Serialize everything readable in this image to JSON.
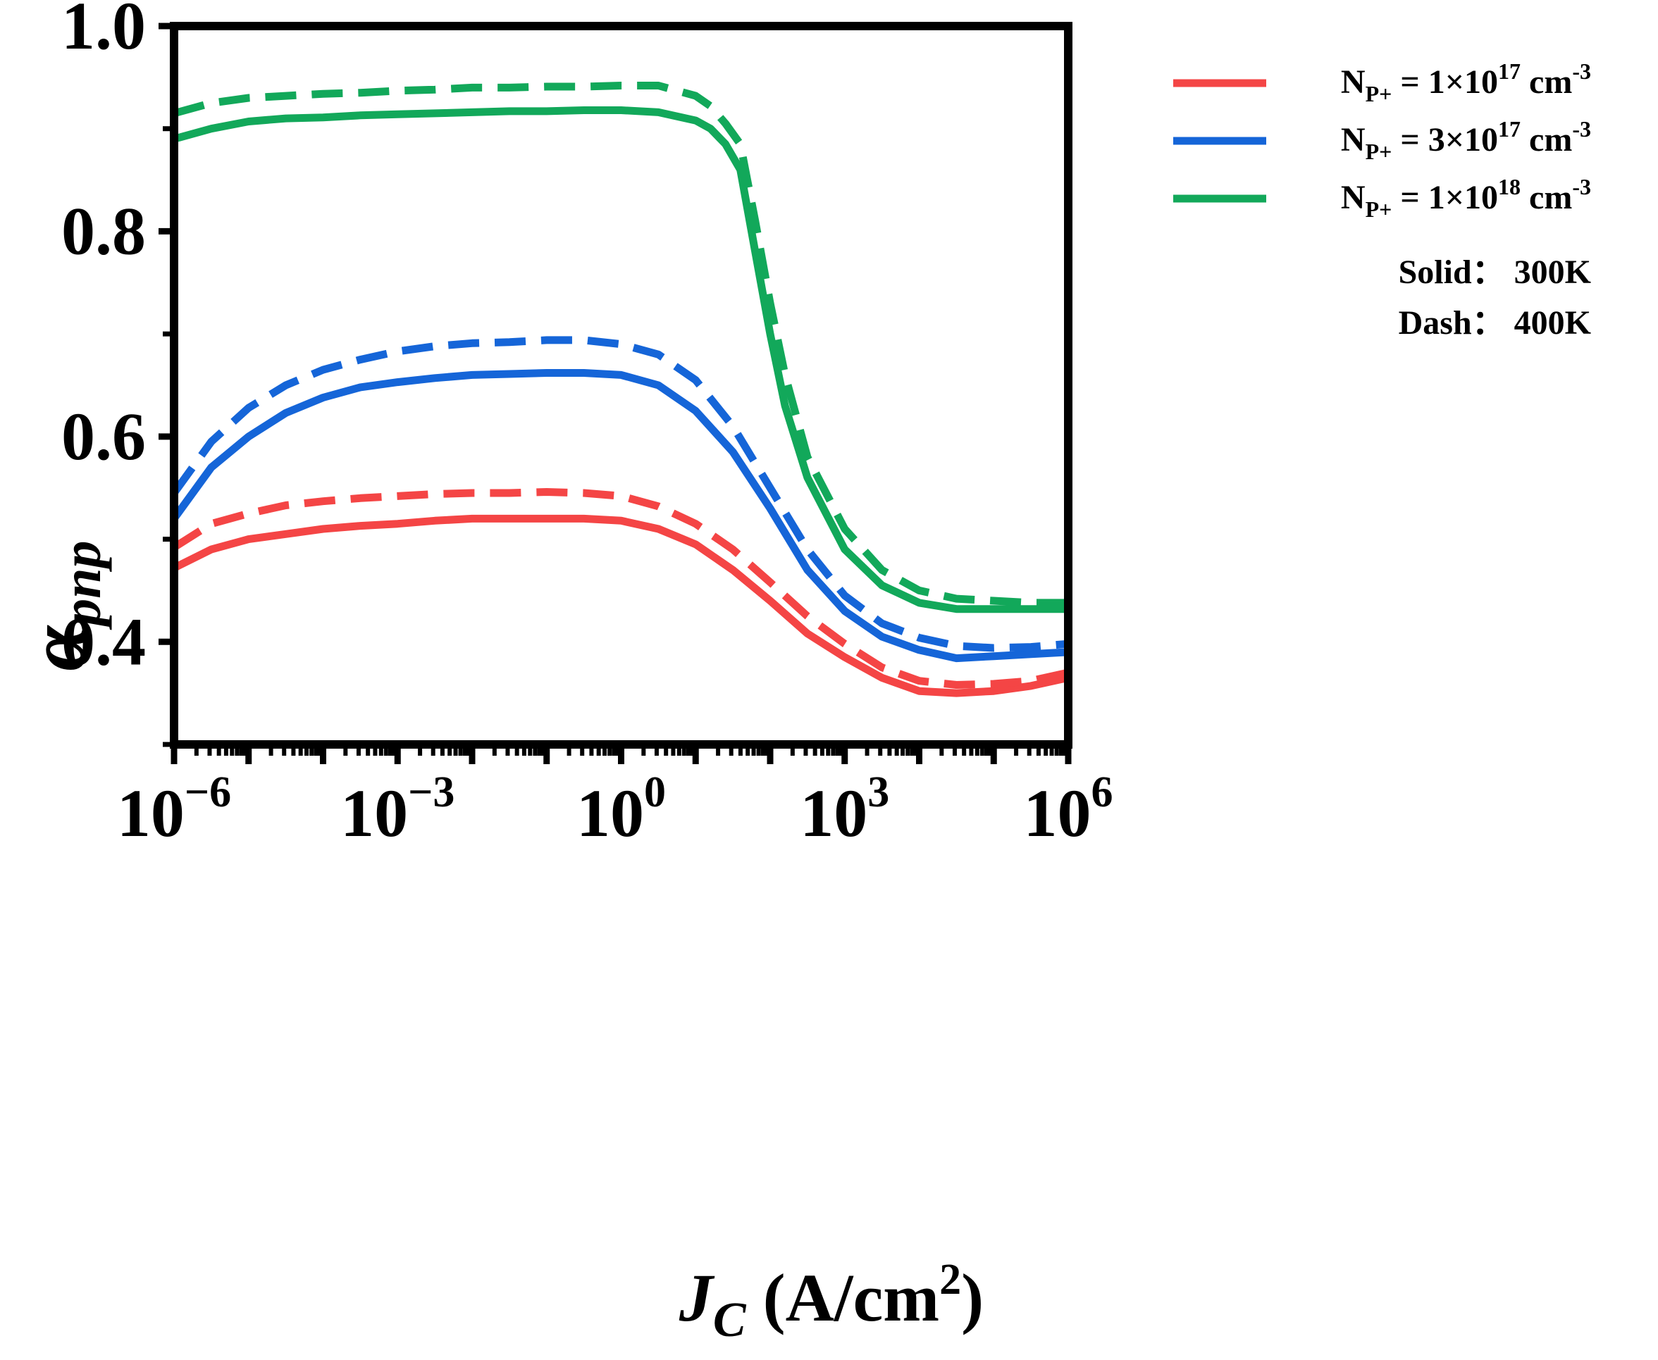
{
  "chart_data": {
    "type": "line",
    "title": "",
    "xlabel": {
      "base": "J",
      "sub": "C",
      "unit": " (A/cm",
      "unit_sup": "2",
      "unit_end": ")"
    },
    "ylabel": {
      "base": "α",
      "sub": "pnp"
    },
    "xscale": "log",
    "xlim_exp": [
      -6,
      6
    ],
    "ylim": [
      0.3,
      1.0
    ],
    "x_ticks": [
      {
        "value": -6,
        "label": "10",
        "exp": "−6"
      },
      {
        "value": -3,
        "label": "10",
        "exp": "−3"
      },
      {
        "value": 0,
        "label": "10",
        "exp": "0"
      },
      {
        "value": 3,
        "label": "10",
        "exp": "3"
      },
      {
        "value": 6,
        "label": "10",
        "exp": "6"
      }
    ],
    "y_ticks": [
      {
        "value": 0.4,
        "label": "0.4"
      },
      {
        "value": 0.6,
        "label": "0.6"
      },
      {
        "value": 0.8,
        "label": "0.8"
      },
      {
        "value": 1.0,
        "label": "1.0"
      }
    ],
    "y_minor_ticks": [
      0.5,
      0.7,
      0.9
    ],
    "colors": {
      "red": "#f44545",
      "blue": "#1565d8",
      "green": "#12a85a"
    },
    "legend": {
      "position": "top-right",
      "entries": [
        {
          "color": "red",
          "prefix": "N",
          "sub": "P+",
          "mid": " = 1×10",
          "sup": "17",
          "unit": " cm",
          "unit_sup": "-3"
        },
        {
          "color": "blue",
          "prefix": "N",
          "sub": "P+",
          "mid": " = 3×10",
          "sup": "17",
          "unit": " cm",
          "unit_sup": "-3"
        },
        {
          "color": "green",
          "prefix": "N",
          "sub": "P+",
          "mid": " = 1×10",
          "sup": "18",
          "unit": " cm",
          "unit_sup": "-3"
        }
      ],
      "notes": [
        "Solid：  300K",
        "Dash：  400K"
      ]
    },
    "series": [
      {
        "name": "Red solid 300K",
        "color": "red",
        "style": "solid",
        "x": [
          -6,
          -5.5,
          -5,
          -4.5,
          -4,
          -3.5,
          -3,
          -2.5,
          -2,
          -1.5,
          -1,
          -0.5,
          0,
          0.5,
          1,
          1.5,
          2,
          2.5,
          3,
          3.5,
          4,
          4.5,
          5,
          5.5,
          6
        ],
        "y": [
          0.472,
          0.49,
          0.5,
          0.505,
          0.51,
          0.513,
          0.515,
          0.518,
          0.52,
          0.52,
          0.52,
          0.52,
          0.518,
          0.51,
          0.495,
          0.47,
          0.44,
          0.408,
          0.385,
          0.365,
          0.352,
          0.35,
          0.352,
          0.357,
          0.365
        ]
      },
      {
        "name": "Red dash 400K",
        "color": "red",
        "style": "dash",
        "x": [
          -6,
          -5.5,
          -5,
          -4.5,
          -4,
          -3.5,
          -3,
          -2.5,
          -2,
          -1.5,
          -1,
          -0.5,
          0,
          0.5,
          1,
          1.5,
          2,
          2.5,
          3,
          3.5,
          4,
          4.5,
          5,
          5.5,
          6
        ],
        "y": [
          0.492,
          0.515,
          0.525,
          0.533,
          0.537,
          0.54,
          0.542,
          0.544,
          0.545,
          0.545,
          0.546,
          0.545,
          0.542,
          0.532,
          0.515,
          0.49,
          0.458,
          0.425,
          0.398,
          0.375,
          0.362,
          0.358,
          0.359,
          0.362,
          0.37
        ]
      },
      {
        "name": "Blue solid 300K",
        "color": "blue",
        "style": "solid",
        "x": [
          -6,
          -5.5,
          -5,
          -4.5,
          -4,
          -3.5,
          -3,
          -2.5,
          -2,
          -1.5,
          -1,
          -0.5,
          0,
          0.5,
          1,
          1.5,
          2,
          2.5,
          3,
          3.5,
          4,
          4.5,
          5,
          5.5,
          6
        ],
        "y": [
          0.52,
          0.57,
          0.6,
          0.623,
          0.638,
          0.648,
          0.653,
          0.657,
          0.66,
          0.661,
          0.662,
          0.662,
          0.66,
          0.65,
          0.625,
          0.585,
          0.53,
          0.47,
          0.43,
          0.405,
          0.392,
          0.384,
          0.386,
          0.388,
          0.39
        ]
      },
      {
        "name": "Blue dash 400K",
        "color": "blue",
        "style": "dash",
        "x": [
          -6,
          -5.5,
          -5,
          -4.5,
          -4,
          -3.5,
          -3,
          -2.5,
          -2,
          -1.5,
          -1,
          -0.5,
          0,
          0.5,
          1,
          1.5,
          2,
          2.5,
          3,
          3.5,
          4,
          4.5,
          5,
          5.5,
          6
        ],
        "y": [
          0.545,
          0.595,
          0.628,
          0.65,
          0.665,
          0.675,
          0.683,
          0.688,
          0.691,
          0.692,
          0.694,
          0.694,
          0.69,
          0.68,
          0.655,
          0.61,
          0.55,
          0.49,
          0.445,
          0.418,
          0.404,
          0.396,
          0.394,
          0.395,
          0.398
        ]
      },
      {
        "name": "Green solid 300K",
        "color": "green",
        "style": "solid",
        "x": [
          -6,
          -5.5,
          -5,
          -4.5,
          -4,
          -3.5,
          -3,
          -2.5,
          -2,
          -1.5,
          -1,
          -0.5,
          0,
          0.5,
          1,
          1.2,
          1.4,
          1.6,
          1.8,
          2,
          2.2,
          2.5,
          3,
          3.5,
          4,
          4.5,
          5,
          5.5,
          6
        ],
        "y": [
          0.89,
          0.9,
          0.907,
          0.91,
          0.911,
          0.913,
          0.914,
          0.915,
          0.916,
          0.917,
          0.917,
          0.918,
          0.918,
          0.916,
          0.908,
          0.9,
          0.885,
          0.86,
          0.78,
          0.7,
          0.63,
          0.56,
          0.49,
          0.455,
          0.438,
          0.432,
          0.432,
          0.432,
          0.432
        ]
      },
      {
        "name": "Green dash 400K",
        "color": "green",
        "style": "dash",
        "x": [
          -6,
          -5.5,
          -5,
          -4.5,
          -4,
          -3.5,
          -3,
          -2.5,
          -2,
          -1.5,
          -1,
          -0.5,
          0,
          0.5,
          1,
          1.2,
          1.4,
          1.6,
          1.8,
          2,
          2.2,
          2.5,
          3,
          3.5,
          4,
          4.5,
          5,
          5.5,
          6
        ],
        "y": [
          0.915,
          0.925,
          0.93,
          0.932,
          0.934,
          0.935,
          0.937,
          0.938,
          0.94,
          0.94,
          0.941,
          0.941,
          0.942,
          0.942,
          0.932,
          0.922,
          0.905,
          0.885,
          0.81,
          0.73,
          0.66,
          0.58,
          0.51,
          0.47,
          0.45,
          0.442,
          0.44,
          0.438,
          0.438
        ]
      }
    ]
  }
}
